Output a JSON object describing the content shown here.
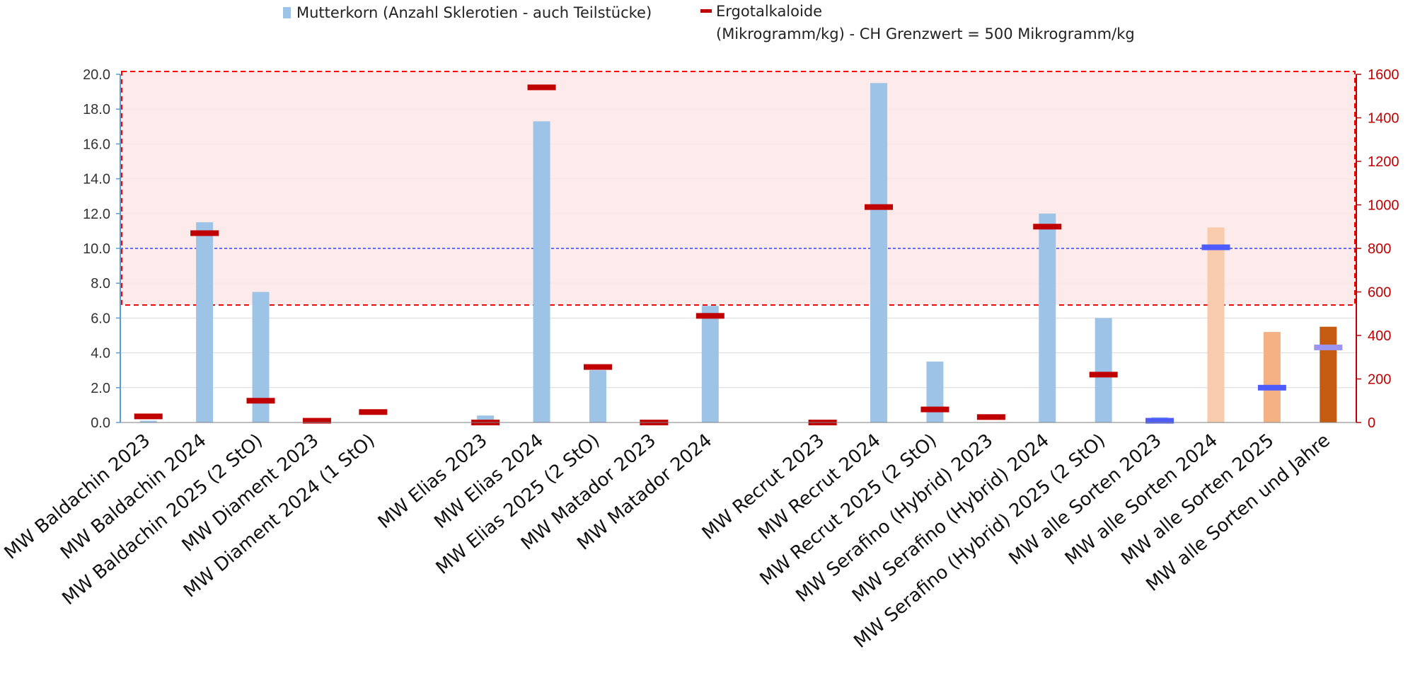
{
  "legend": {
    "mutterkorn": "Mutterkorn (Anzahl Sklerotien - auch Teilstücke)",
    "ergot_line1": "Ergotalkaloide",
    "ergot_line2": "(Mikrogramm/kg) - CH Grenzwert = 500 Mikrogramm/kg"
  },
  "colors": {
    "bar_blue": "#9dc3e6",
    "bar_light_orange": "#f8cbad",
    "bar_orange": "#f4b183",
    "bar_dark_orange": "#c55a11",
    "marker_red": "#c00000",
    "marker_blue": "#4d5bff",
    "marker_lavender": "#9b95f0",
    "zone_fill": "#fde6e6",
    "zone_border": "#ff0000",
    "reference_line": "#3344ff",
    "right_axis": "#c00000",
    "left_axis": "#5b9bd5"
  },
  "chart_data": {
    "type": "bar",
    "categories": [
      "MW Baldachin 2023",
      "MW Baldachin 2024",
      "MW Baldachin 2025 (2 StO)",
      "MW Diament 2023",
      "MW Diament 2024 (1 StO)",
      "",
      "MW Elias 2023",
      "MW Elias 2024",
      "MW Elias 2025 (2 StO)",
      "MW Matador 2023",
      "MW Matador 2024",
      "",
      "MW Recrut 2023",
      "MW Recrut 2024",
      "MW Recrut 2025 (2 StO)",
      "MW Serafino (Hybrid) 2023",
      "MW Serafino (Hybrid) 2024",
      "MW Serafino (Hybrid) 2025 (2 StO)",
      "MW alle Sorten 2023",
      "MW alle Sorten 2024",
      "MW alle Sorten 2025",
      "MW alle Sorten und Jahre"
    ],
    "series": [
      {
        "name": "Mutterkorn (Anzahl Sklerotien - auch Teilstücke)",
        "axis": "left",
        "values": [
          0.1,
          11.5,
          7.5,
          0.1,
          0,
          null,
          0.4,
          17.3,
          3.0,
          0,
          6.7,
          null,
          0,
          19.5,
          3.5,
          0,
          12.0,
          6.0,
          0.3,
          11.2,
          5.2,
          5.5
        ],
        "colors": [
          "bar_blue",
          "bar_blue",
          "bar_blue",
          "bar_blue",
          "bar_blue",
          "bar_blue",
          "bar_blue",
          "bar_blue",
          "bar_blue",
          "bar_blue",
          "bar_blue",
          "bar_blue",
          "bar_blue",
          "bar_blue",
          "bar_blue",
          "bar_blue",
          "bar_blue",
          "bar_blue",
          "bar_blue",
          "bar_light_orange",
          "bar_orange",
          "bar_dark_orange"
        ]
      },
      {
        "name": "Ergotalkaloide",
        "axis": "right",
        "values": [
          28,
          870,
          100,
          8,
          48,
          null,
          0,
          1540,
          255,
          0,
          490,
          null,
          0,
          990,
          60,
          25,
          900,
          220,
          8,
          805,
          160,
          345
        ],
        "colors": [
          "marker_red",
          "marker_red",
          "marker_red",
          "marker_red",
          "marker_red",
          "marker_red",
          "marker_red",
          "marker_red",
          "marker_red",
          "marker_red",
          "marker_red",
          "marker_red",
          "marker_red",
          "marker_red",
          "marker_red",
          "marker_red",
          "marker_red",
          "marker_red",
          "marker_blue",
          "marker_blue",
          "marker_blue",
          "marker_lavender"
        ]
      }
    ],
    "left_axis": {
      "ylim": [
        0,
        20
      ],
      "ticks": [
        "0.0",
        "2.0",
        "4.0",
        "6.0",
        "8.0",
        "10.0",
        "12.0",
        "14.0",
        "16.0",
        "18.0",
        "20.0"
      ]
    },
    "right_axis": {
      "ylim": [
        0,
        1600
      ],
      "ticks": [
        "0",
        "200",
        "400",
        "600",
        "800",
        "1000",
        "1200",
        "1400",
        "1600"
      ]
    },
    "threshold_zone_from": 540,
    "reference_line": 800,
    "grid": true,
    "legend_position": "top"
  }
}
